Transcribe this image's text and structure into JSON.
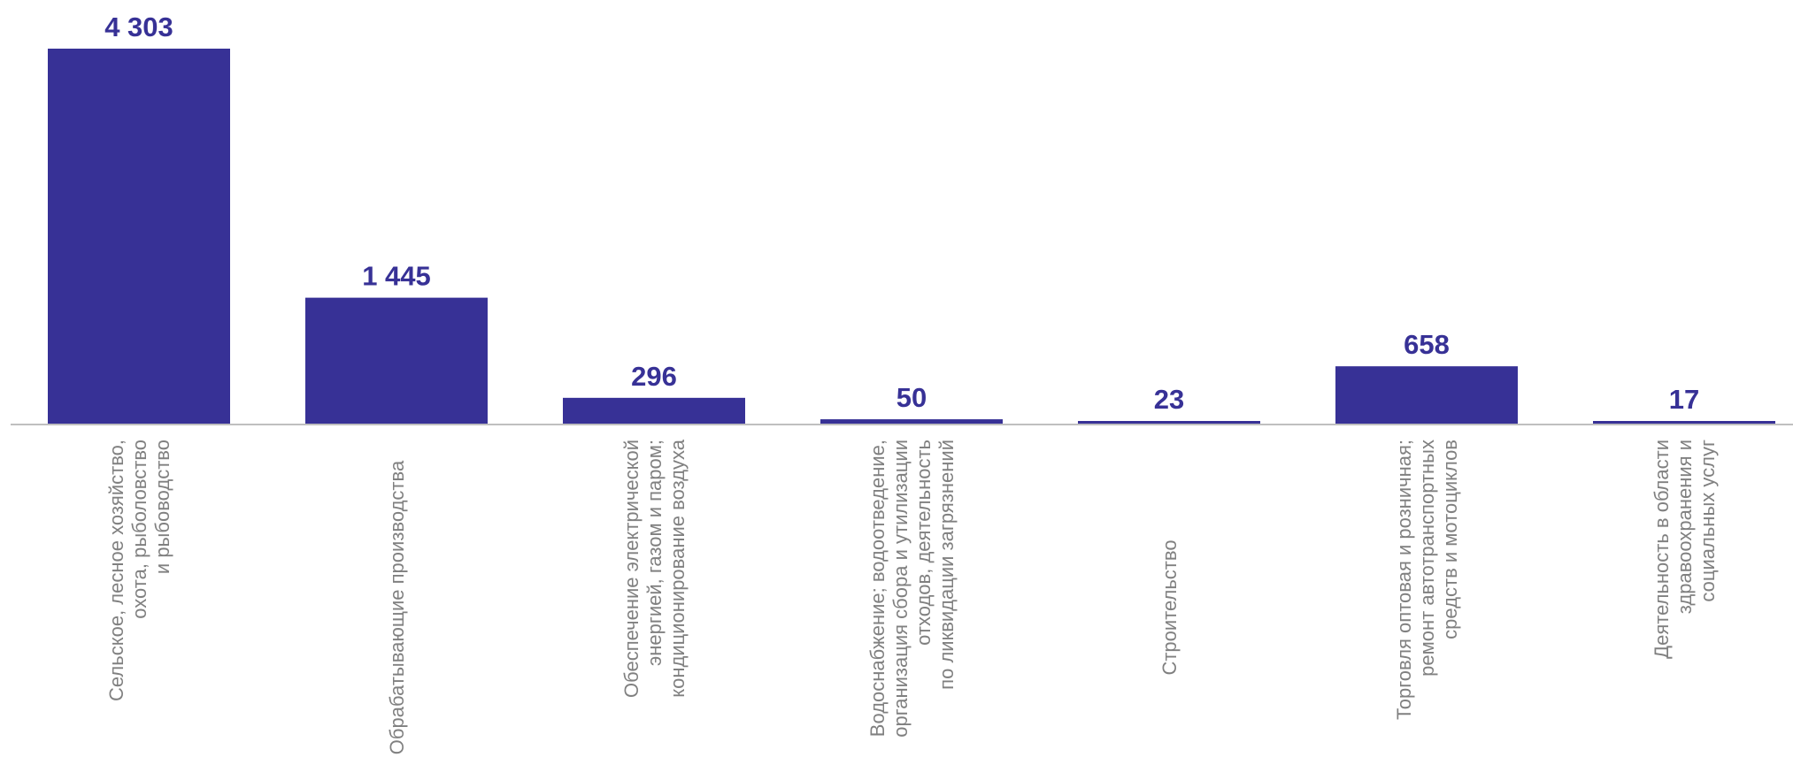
{
  "chart_data": {
    "type": "bar",
    "categories": [
      [
        "Сельское, лесное хозяйство,",
        "охота, рыболовство",
        "и рыбоводство"
      ],
      [
        "Обрабатывающие производства"
      ],
      [
        "Обеспечение электрической",
        "энергией, газом и паром;",
        "кондиционирование воздуха"
      ],
      [
        "Водоснабжение; водоотведение,",
        "организация сбора и утилизации",
        "отходов, деятельность",
        "по ликвидации загрязнений"
      ],
      [
        "Строительство"
      ],
      [
        "Торговля оптовая и розничная;",
        "ремонт автотранспортных",
        "средств и мотоциклов"
      ],
      [
        "Деятельность в области",
        "здравоохранения и",
        "социальных услуг"
      ]
    ],
    "values": [
      4303,
      1445,
      296,
      50,
      23,
      658,
      17
    ],
    "value_labels": [
      "4 303",
      "1 445",
      "296",
      "50",
      "23",
      "658",
      "17"
    ],
    "title": "",
    "xlabel": "",
    "ylabel": "",
    "ylim": [
      0,
      4303
    ],
    "grid": false,
    "legend": "none",
    "colors": {
      "bar": "#373196",
      "value_label": "#373196",
      "category_label": "#808080",
      "axis": "#bfbfbf"
    }
  }
}
